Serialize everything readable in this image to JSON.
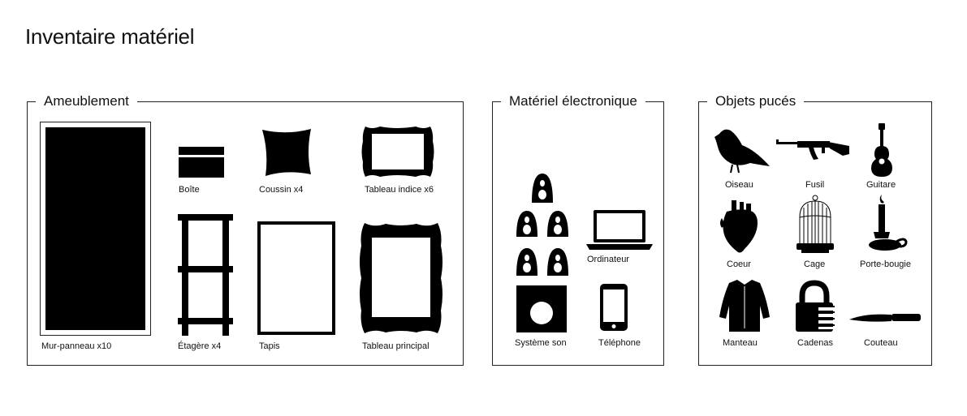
{
  "title": "Inventaire matériel",
  "groups": {
    "ameublement": {
      "label": "Ameublement",
      "items": {
        "mur_panneau": "Mur-panneau x10",
        "boite": "Boîte",
        "coussin": "Coussin x4",
        "tableau_indice": "Tableau indice x6",
        "etagere": "Étagère x4",
        "tapis": "Tapis",
        "tableau_principal": "Tableau principal"
      }
    },
    "electronique": {
      "label": "Matériel électronique",
      "items": {
        "ordinateur": "Ordinateur",
        "systeme_son": "Système son",
        "telephone": "Téléphone"
      }
    },
    "objets": {
      "label": "Objets pucés",
      "items": {
        "oiseau": "Oiseau",
        "fusil": "Fusil",
        "guitare": "Guitare",
        "coeur": "Coeur",
        "cage": "Cage",
        "porte_bougie": "Porte-bougie",
        "manteau": "Manteau",
        "cadenas": "Cadenas",
        "couteau": "Couteau"
      }
    }
  }
}
